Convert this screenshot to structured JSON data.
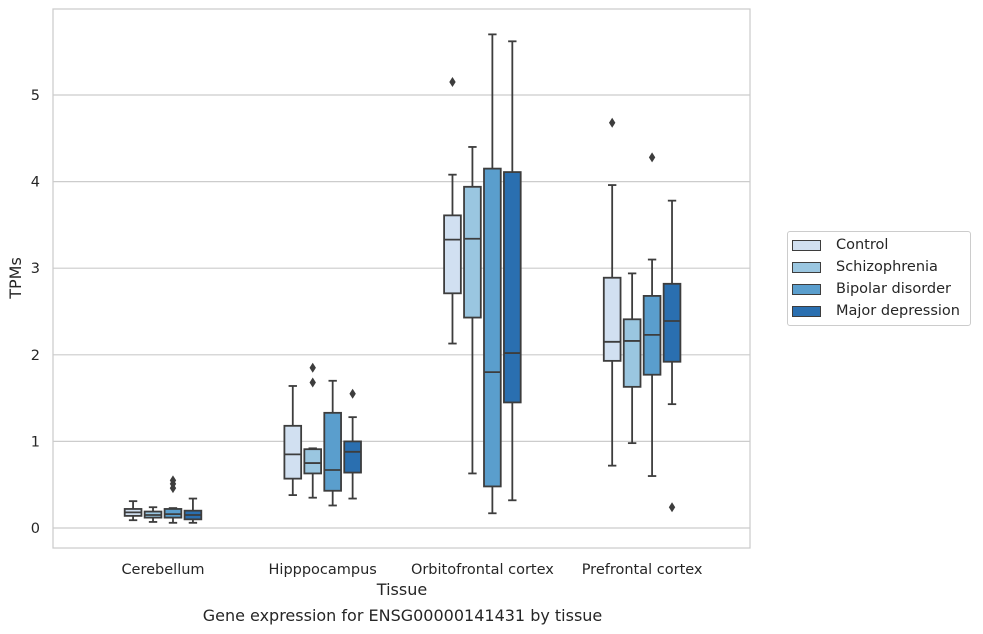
{
  "caption": "Gene expression for ENSG00000141431 by tissue",
  "chart_data": {
    "type": "box",
    "xlabel": "Tissue",
    "ylabel": "TPMs",
    "ylim": [
      -0.22,
      5.98
    ],
    "yticks": [
      0,
      1,
      2,
      3,
      4,
      5
    ],
    "grid": "horizontal",
    "legend_position": "right",
    "categories": [
      "Cerebellum",
      "Hipppocampus",
      "Orbitofrontal cortex",
      "Prefrontal cortex"
    ],
    "series": [
      {
        "name": "Control",
        "color": "#d1e0f1",
        "boxes": [
          {
            "whislo": 0.09,
            "q1": 0.14,
            "med": 0.18,
            "q3": 0.22,
            "whishi": 0.31,
            "fliers": []
          },
          {
            "whislo": 0.38,
            "q1": 0.57,
            "med": 0.85,
            "q3": 1.18,
            "whishi": 1.64,
            "fliers": []
          },
          {
            "whislo": 2.13,
            "q1": 2.71,
            "med": 3.33,
            "q3": 3.61,
            "whishi": 4.08,
            "fliers": [
              5.15
            ]
          },
          {
            "whislo": 0.72,
            "q1": 1.93,
            "med": 2.15,
            "q3": 2.89,
            "whishi": 3.96,
            "fliers": [
              4.68
            ]
          }
        ]
      },
      {
        "name": "Schizophrenia",
        "color": "#9ac6e0",
        "boxes": [
          {
            "whislo": 0.07,
            "q1": 0.12,
            "med": 0.15,
            "q3": 0.19,
            "whishi": 0.24,
            "fliers": []
          },
          {
            "whislo": 0.35,
            "q1": 0.63,
            "med": 0.75,
            "q3": 0.91,
            "whishi": 0.92,
            "fliers": [
              1.85,
              1.68
            ]
          },
          {
            "whislo": 0.63,
            "q1": 2.43,
            "med": 3.34,
            "q3": 3.94,
            "whishi": 4.4,
            "fliers": []
          },
          {
            "whislo": 0.98,
            "q1": 1.63,
            "med": 2.16,
            "q3": 2.41,
            "whishi": 2.94,
            "fliers": []
          }
        ]
      },
      {
        "name": "Bipolar disorder",
        "color": "#5a9ecd",
        "boxes": [
          {
            "whislo": 0.06,
            "q1": 0.12,
            "med": 0.16,
            "q3": 0.22,
            "whishi": 0.23,
            "fliers": [
              0.51,
              0.55,
              0.46
            ]
          },
          {
            "whislo": 0.26,
            "q1": 0.43,
            "med": 0.67,
            "q3": 1.33,
            "whishi": 1.7,
            "fliers": []
          },
          {
            "whislo": 0.17,
            "q1": 0.48,
            "med": 1.8,
            "q3": 4.15,
            "whishi": 5.7,
            "fliers": []
          },
          {
            "whislo": 0.6,
            "q1": 1.77,
            "med": 2.23,
            "q3": 2.68,
            "whishi": 3.1,
            "fliers": [
              4.28
            ]
          }
        ]
      },
      {
        "name": "Major depression",
        "color": "#2a6fb0",
        "boxes": [
          {
            "whislo": 0.06,
            "q1": 0.1,
            "med": 0.15,
            "q3": 0.2,
            "whishi": 0.34,
            "fliers": []
          },
          {
            "whislo": 0.34,
            "q1": 0.64,
            "med": 0.88,
            "q3": 1.0,
            "whishi": 1.28,
            "fliers": [
              1.55
            ]
          },
          {
            "whislo": 0.32,
            "q1": 1.45,
            "med": 2.02,
            "q3": 4.11,
            "whishi": 5.62,
            "fliers": []
          },
          {
            "whislo": 1.43,
            "q1": 1.92,
            "med": 2.39,
            "q3": 2.82,
            "whishi": 3.78,
            "fliers": [
              0.24
            ]
          }
        ]
      }
    ]
  }
}
